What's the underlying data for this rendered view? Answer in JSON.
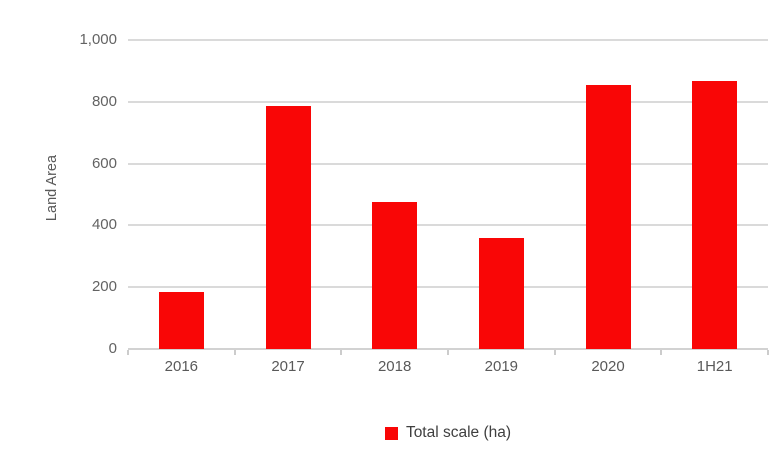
{
  "chart_data": {
    "type": "bar",
    "title": "",
    "xlabel": "",
    "ylabel": "Land Area",
    "categories": [
      "2016",
      "2017",
      "2018",
      "2019",
      "2020",
      "1H21"
    ],
    "series": [
      {
        "name": "Total scale (ha)",
        "values": [
          185,
          788,
          476,
          360,
          855,
          866
        ]
      }
    ],
    "ylim": [
      0,
      1000
    ],
    "ytick_values": [
      0,
      200,
      400,
      600,
      800,
      1000
    ],
    "ytick_labels": [
      "0",
      "200",
      "400",
      "600",
      "800",
      "1,000"
    ],
    "grid": "horizontal-on",
    "legend_position": "bottom-center"
  },
  "legend": {
    "label": "Total scale (ha)"
  },
  "colors": {
    "bar": "#f90606",
    "gridline": "#dadada",
    "axis_line": "#d2d2d2",
    "tick_text": "#636363",
    "category_text": "#595959",
    "legend_text": "#3f3f3f"
  }
}
